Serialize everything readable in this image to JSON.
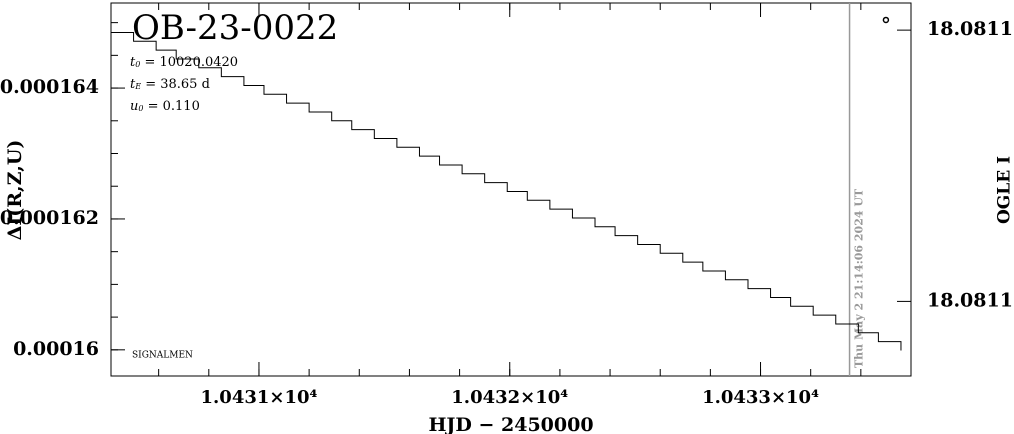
{
  "chart_data": {
    "type": "step",
    "title": "OB-23-0022",
    "parameters": [
      {
        "symbol": "t",
        "sub": "0",
        "text": " = 10020.0420"
      },
      {
        "symbol": "t",
        "sub": "E",
        "text": " = 38.65 d"
      },
      {
        "symbol": "u",
        "sub": "0",
        "text": " = 0.110"
      }
    ],
    "note": "SIGNALMEN",
    "x_label": "HJD − 2450000",
    "y_label": "ΔI(R,Z,U)",
    "y2_label": "OGLE I",
    "xlim": [
      10430.41,
      10433.6
    ],
    "xticks": [
      {
        "value": 10431,
        "label": "1.0431×10⁴"
      },
      {
        "value": 10432,
        "label": "1.0432×10⁴"
      },
      {
        "value": 10433,
        "label": "1.0433×10⁴"
      }
    ],
    "ylim": [
      0.0001596,
      0.0001653
    ],
    "yticks": [
      0.00016,
      0.000162,
      0.000164
    ],
    "y2lim": [
      18.081069,
      18.081124
    ],
    "y2ticks": [
      {
        "value": 18.08108,
        "label": "18.0811"
      },
      {
        "value": 18.08112,
        "label": "18.0811"
      }
    ],
    "color": "#000000",
    "series": [
      {
        "x": [
          10430.41,
          10430.5,
          10430.59,
          10430.67,
          10430.76,
          10430.85,
          10430.94,
          10431.02,
          10431.11,
          10431.2,
          10431.29,
          10431.37,
          10431.46,
          10431.55,
          10431.64,
          10431.72,
          10431.81,
          10431.9,
          10431.99,
          10432.07,
          10432.16,
          10432.25,
          10432.34,
          10432.42,
          10432.51,
          10432.6,
          10432.69,
          10432.77,
          10432.86,
          10432.95,
          10433.04,
          10433.12,
          10433.21,
          10433.3,
          10433.39,
          10433.47,
          10433.56
        ],
        "values": [
          0.00016485,
          0.000164715,
          0.00016458,
          0.000164445,
          0.00016431,
          0.000164175,
          0.00016404,
          0.000163905,
          0.00016377,
          0.000163635,
          0.0001635,
          0.000163365,
          0.00016323,
          0.000163095,
          0.00016296,
          0.000162825,
          0.00016269,
          0.000162555,
          0.00016242,
          0.000162285,
          0.00016215,
          0.000162015,
          0.00016188,
          0.000161745,
          0.00016161,
          0.000161475,
          0.00016134,
          0.000161205,
          0.00016107,
          0.000160935,
          0.0001608,
          0.000160665,
          0.00016053,
          0.000160395,
          0.00016026,
          0.000160125,
          0.00015999
        ]
      },
      {
        "axis": "y2",
        "x": [
          10433.5
        ],
        "values": [
          18.0811215
        ]
      }
    ],
    "now_line": {
      "x": 10433.355,
      "label": "Thu May  2 21:14:06 2024 UT",
      "color": "#999999"
    }
  }
}
